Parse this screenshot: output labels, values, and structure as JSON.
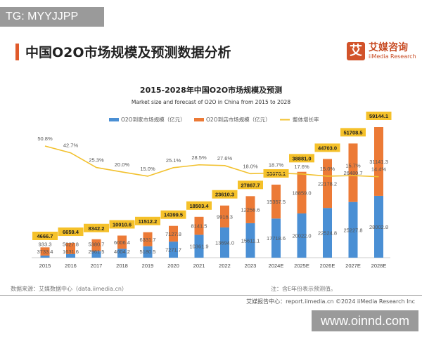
{
  "watermark_top": "TG: MYYJJPP",
  "watermark_bottom": "www.oinnd.com",
  "page_title": "中国O2O市场规模及预测数据分析",
  "logo": {
    "cn": "艾媒咨询",
    "en": "iiMedia Research",
    "mark": "艾"
  },
  "source": "数据来源：艾媒数据中心（data.iimedia.cn）",
  "note": "注：含E年份表示预测值。",
  "footer": "艾媒报告中心：report.iimedia.cn    ©2024  iiMedia Research  Inc",
  "colors": {
    "home": "#4a8fd4",
    "store": "#ec7a36",
    "growth": "#f2c12e",
    "total_box": "#f5c12a"
  },
  "chart_data": {
    "type": "bar",
    "stacked": true,
    "title": "2015-2028年中国O2O市场规模及预测",
    "subtitle": "Market size and forecast of O2O in China from 2015 to 2028",
    "legend_position": "top",
    "grid": false,
    "categories": [
      "2015",
      "2016",
      "2017",
      "2018",
      "2019",
      "2020",
      "2021",
      "2022",
      "2023",
      "2024E",
      "2025E",
      "2026E",
      "2027E",
      "2028E"
    ],
    "series": [
      {
        "name": "O2O到家市场规模（亿元）",
        "type": "bar",
        "values": [
          933.3,
          1631.6,
          2961.5,
          4004.2,
          5180.5,
          7271.7,
          10361.9,
          13694.0,
          15611.1,
          17718.6,
          20022.0,
          22524.8,
          25227.8,
          28002.8
        ]
      },
      {
        "name": "O2O到店市场规模（亿元）",
        "type": "bar",
        "values": [
          3733.4,
          5027.8,
          5380.7,
          6006.4,
          6331.7,
          7127.8,
          8141.5,
          9916.3,
          12256.6,
          15357.5,
          18859.0,
          22178.2,
          26480.7,
          31141.3
        ]
      },
      {
        "name": "整体增长率",
        "type": "line",
        "unit": "%",
        "values": [
          50.8,
          42.7,
          25.3,
          20.0,
          15.0,
          25.1,
          28.5,
          27.6,
          18.0,
          18.7,
          17.6,
          15.0,
          15.7,
          14.4
        ]
      }
    ],
    "totals": [
      "4666.7",
      "6659.4",
      "8342.2",
      "10010.6",
      "11512.2",
      "14399.5",
      "18503.4",
      "23610.3",
      "27867.7",
      "33076.1",
      "38881.0",
      "44703.0",
      "51708.5",
      "59144.1"
    ]
  }
}
